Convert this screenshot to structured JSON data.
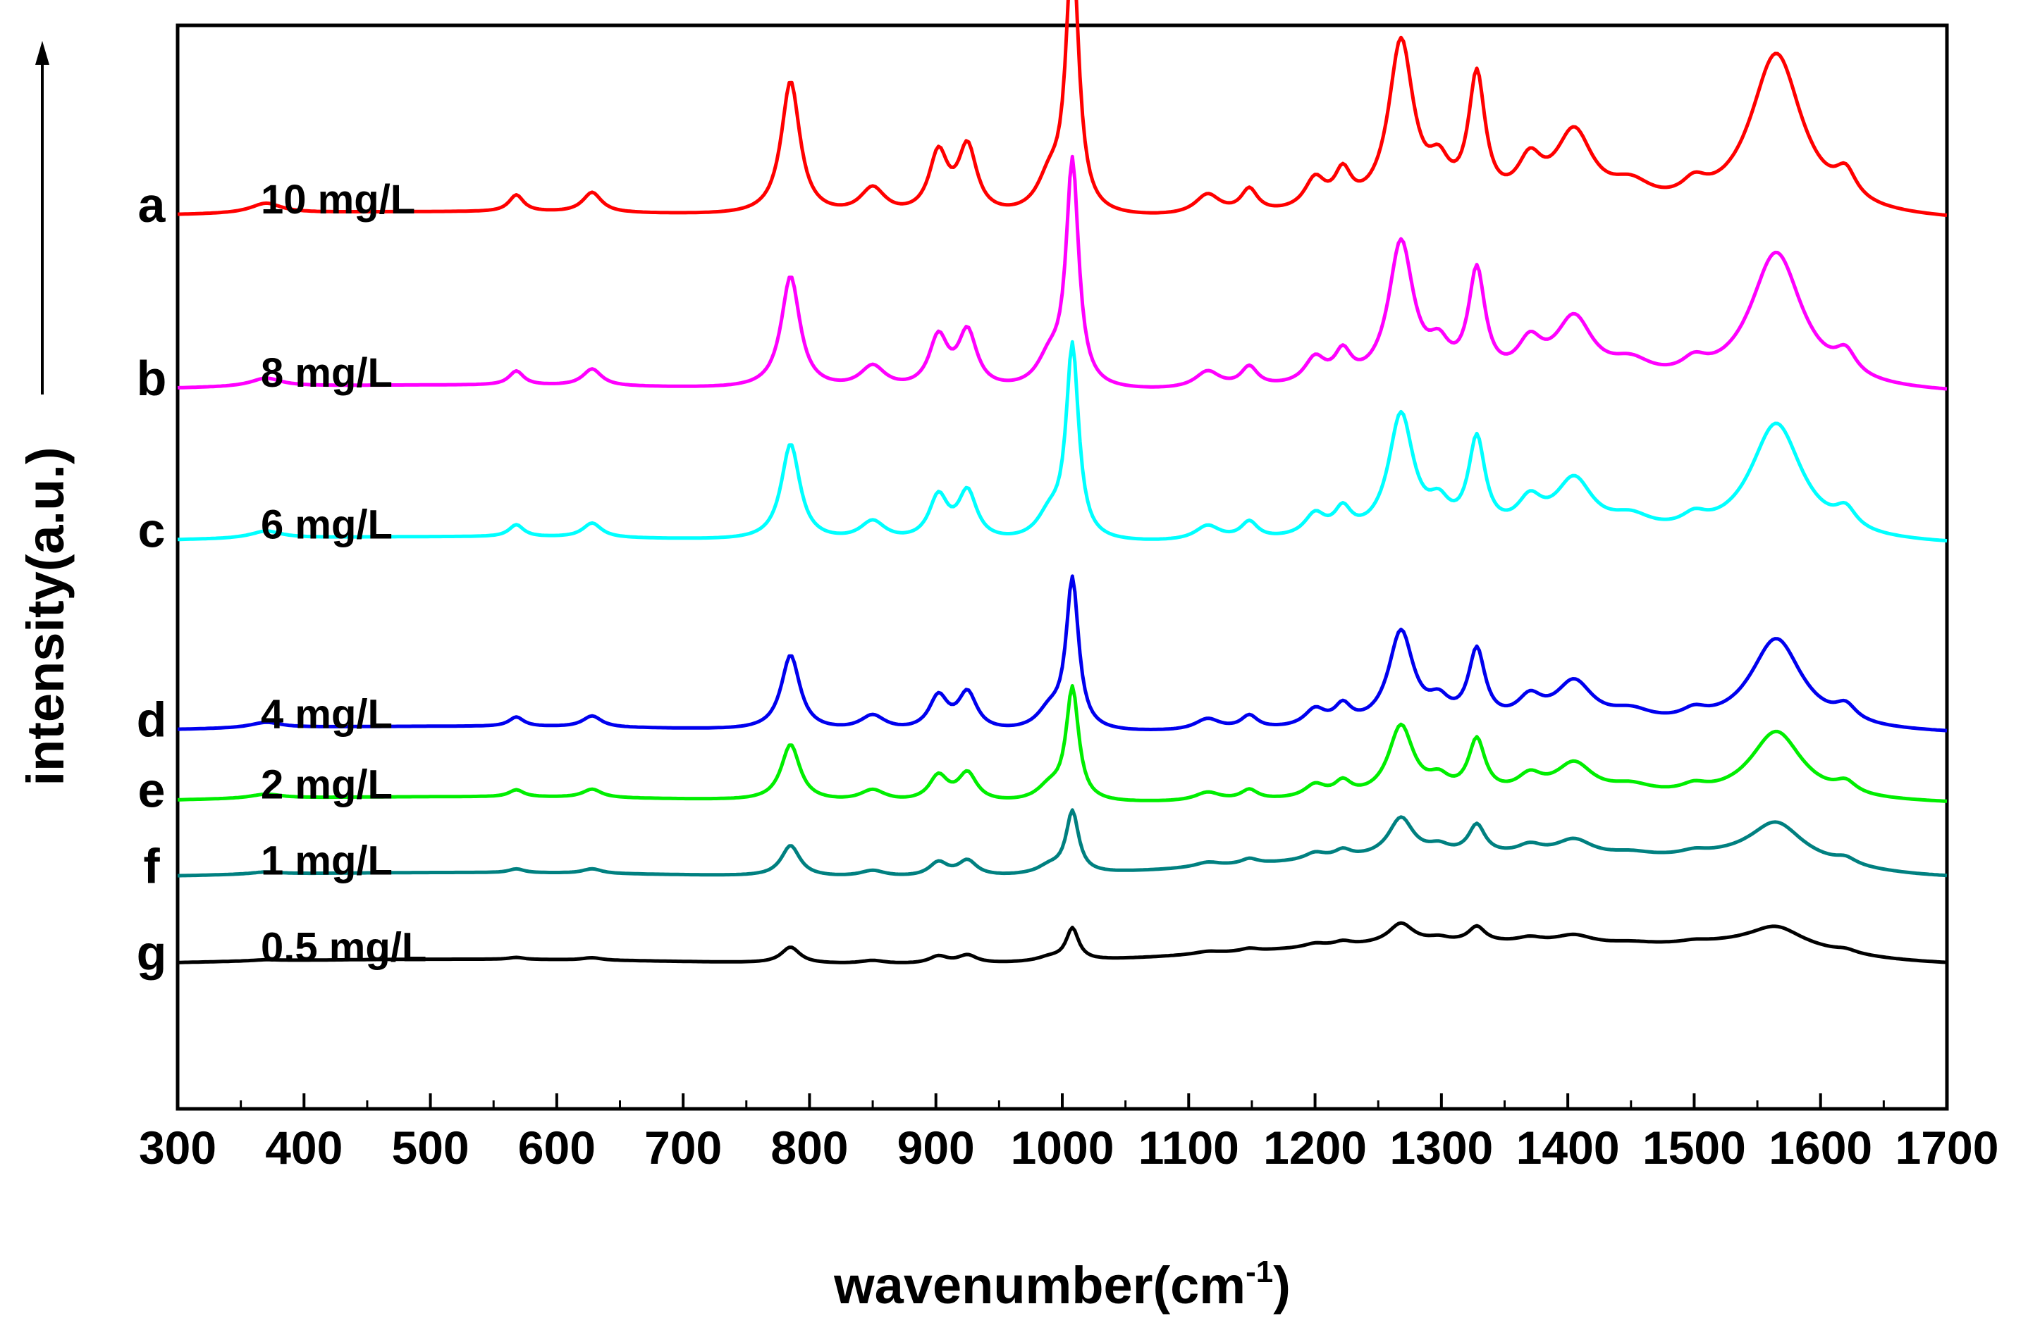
{
  "chart_data": {
    "type": "line",
    "xlabel": "wavenumber(cm",
    "xlabel_sup": "-1",
    "xlabel_close": ")",
    "ylabel": "intensity(a.u.)",
    "xlim": [
      300,
      1700
    ],
    "x_ticks": [
      300,
      400,
      500,
      600,
      700,
      800,
      900,
      1000,
      1100,
      1200,
      1300,
      1400,
      1500,
      1600,
      1700
    ],
    "grid": false,
    "legend": "none",
    "series": [
      {
        "letter": "a",
        "name": "10 mg/L",
        "color": "#ff0000",
        "base": 0.855,
        "scale": 1.0
      },
      {
        "letter": "b",
        "name": "8 mg/L",
        "color": "#ff00ff",
        "base": 0.695,
        "scale": 0.84
      },
      {
        "letter": "c",
        "name": "6 mg/L",
        "color": "#00ffff",
        "base": 0.555,
        "scale": 0.72
      },
      {
        "letter": "d",
        "name": "4 mg/L",
        "color": "#0000ee",
        "base": 0.38,
        "scale": 0.56
      },
      {
        "letter": "e",
        "name": "2 mg/L",
        "color": "#00ee00",
        "base": 0.315,
        "scale": 0.42
      },
      {
        "letter": "f",
        "name": "1 mg/L",
        "color": "#008080",
        "base": 0.245,
        "scale": 0.23
      },
      {
        "letter": "g",
        "name": "0.5 mg/L",
        "color": "#000000",
        "base": 0.165,
        "scale": 0.12
      }
    ],
    "peaks": [
      {
        "x": 370,
        "h": 0.03,
        "w": 15
      },
      {
        "x": 568,
        "h": 0.05,
        "w": 7
      },
      {
        "x": 628,
        "h": 0.06,
        "w": 9
      },
      {
        "x": 785,
        "h": 0.4,
        "w": 9
      },
      {
        "x": 850,
        "h": 0.08,
        "w": 12
      },
      {
        "x": 902,
        "h": 0.18,
        "w": 9
      },
      {
        "x": 925,
        "h": 0.2,
        "w": 9
      },
      {
        "x": 990,
        "h": 0.1,
        "w": 12
      },
      {
        "x": 1008,
        "h": 0.8,
        "w": 6
      },
      {
        "x": 1115,
        "h": 0.06,
        "w": 12
      },
      {
        "x": 1148,
        "h": 0.07,
        "w": 8
      },
      {
        "x": 1200,
        "h": 0.09,
        "w": 10
      },
      {
        "x": 1222,
        "h": 0.1,
        "w": 8
      },
      {
        "x": 1268,
        "h": 0.5,
        "w": 12
      },
      {
        "x": 1298,
        "h": 0.1,
        "w": 10
      },
      {
        "x": 1328,
        "h": 0.38,
        "w": 8
      },
      {
        "x": 1370,
        "h": 0.12,
        "w": 12
      },
      {
        "x": 1405,
        "h": 0.22,
        "w": 18
      },
      {
        "x": 1450,
        "h": 0.06,
        "w": 20
      },
      {
        "x": 1500,
        "h": 0.05,
        "w": 12
      },
      {
        "x": 1565,
        "h": 0.48,
        "w": 25
      },
      {
        "x": 1620,
        "h": 0.08,
        "w": 10
      }
    ]
  }
}
